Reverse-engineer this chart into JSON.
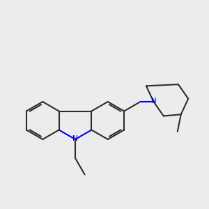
{
  "bg_color": "#ececec",
  "bond_color": "#2d2d2d",
  "n_color": "#0000ee",
  "lw": 1.5,
  "fig_size": [
    3.0,
    3.0
  ],
  "dpi": 100
}
